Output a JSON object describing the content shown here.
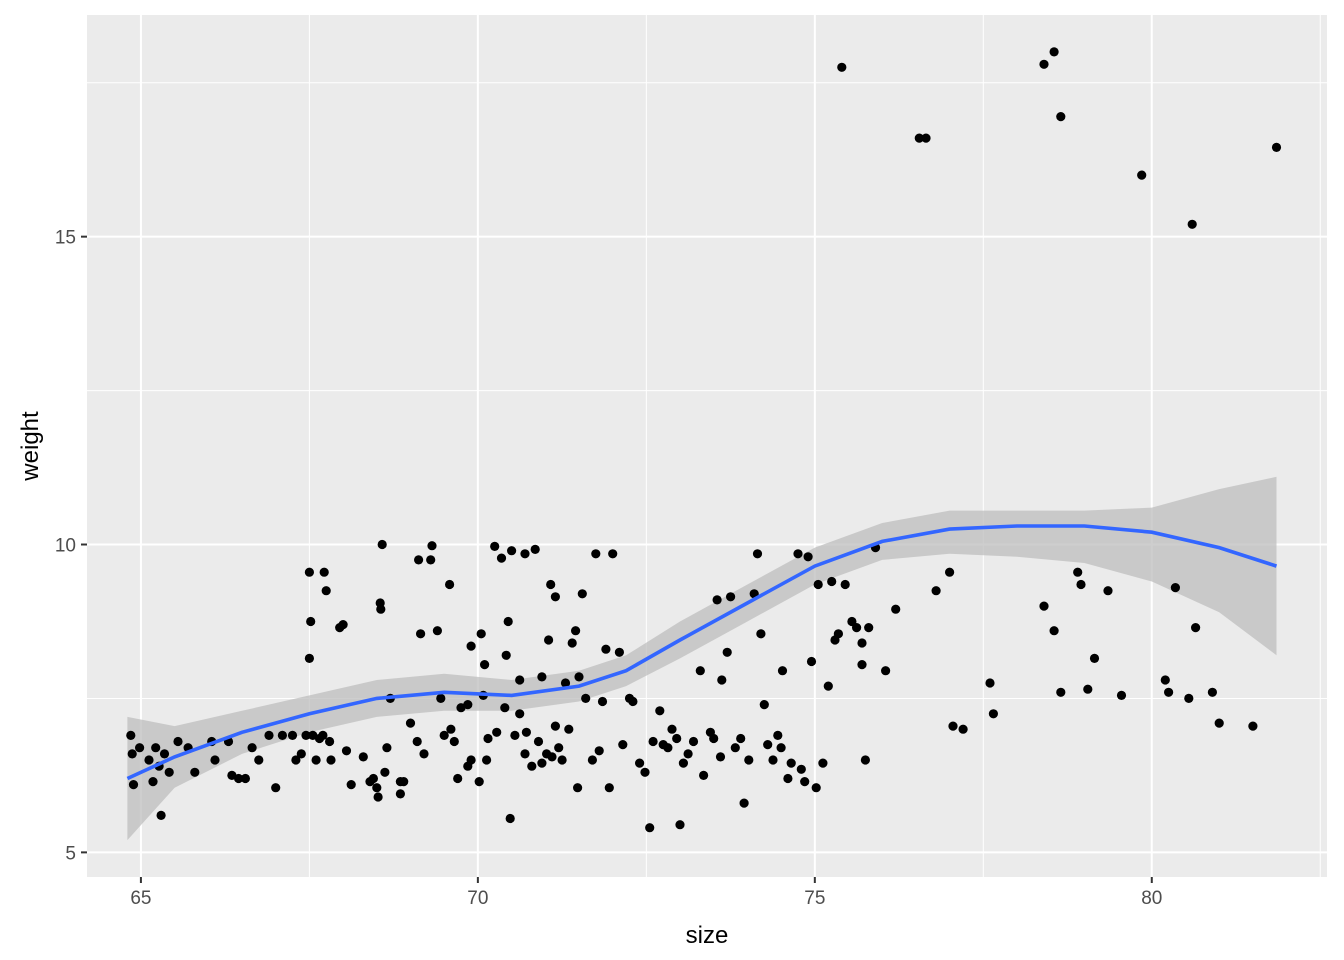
{
  "chart_data": {
    "type": "scatter",
    "title": "",
    "xlabel": "size",
    "ylabel": "weight",
    "xlim": [
      64.2,
      82.6
    ],
    "ylim": [
      4.6,
      18.6
    ],
    "x_major_ticks": [
      65,
      70,
      75,
      80
    ],
    "x_tick_labels": [
      "65",
      "70",
      "75",
      "80"
    ],
    "y_major_ticks": [
      5,
      10,
      15
    ],
    "y_tick_labels": [
      "5",
      "10",
      "15"
    ],
    "grid": true,
    "legend": "none",
    "colors": {
      "panel_background": "#ebebeb",
      "grid": "#ffffff",
      "points": "#000000",
      "smooth_line": "#3366ff",
      "confidence_band": "#bdbdbd"
    },
    "points": [
      [
        64.85,
        6.9
      ],
      [
        64.87,
        6.6
      ],
      [
        64.89,
        6.1
      ],
      [
        64.98,
        6.7
      ],
      [
        65.12,
        6.5
      ],
      [
        65.18,
        6.15
      ],
      [
        65.22,
        6.7
      ],
      [
        65.27,
        6.4
      ],
      [
        65.3,
        5.6
      ],
      [
        65.35,
        6.6
      ],
      [
        65.42,
        6.3
      ],
      [
        65.55,
        6.8
      ],
      [
        65.7,
        6.7
      ],
      [
        65.8,
        6.3
      ],
      [
        66.05,
        6.8
      ],
      [
        66.1,
        6.5
      ],
      [
        66.3,
        6.8
      ],
      [
        66.35,
        6.25
      ],
      [
        66.45,
        6.2
      ],
      [
        66.55,
        6.2
      ],
      [
        66.65,
        6.7
      ],
      [
        66.75,
        6.5
      ],
      [
        66.9,
        6.9
      ],
      [
        67.0,
        6.05
      ],
      [
        67.1,
        6.9
      ],
      [
        67.25,
        6.9
      ],
      [
        67.3,
        6.5
      ],
      [
        67.38,
        6.6
      ],
      [
        67.45,
        6.9
      ],
      [
        67.5,
        9.55
      ],
      [
        67.5,
        8.15
      ],
      [
        67.52,
        8.75
      ],
      [
        67.55,
        6.9
      ],
      [
        67.6,
        6.5
      ],
      [
        67.65,
        6.85
      ],
      [
        67.72,
        9.55
      ],
      [
        67.7,
        6.9
      ],
      [
        67.75,
        9.25
      ],
      [
        67.8,
        6.8
      ],
      [
        67.82,
        6.5
      ],
      [
        67.95,
        8.65
      ],
      [
        68.0,
        8.7
      ],
      [
        68.05,
        6.65
      ],
      [
        68.12,
        6.1
      ],
      [
        68.3,
        6.55
      ],
      [
        68.4,
        6.15
      ],
      [
        68.45,
        6.2
      ],
      [
        68.5,
        6.05
      ],
      [
        68.52,
        5.9
      ],
      [
        68.55,
        9.05
      ],
      [
        68.56,
        8.95
      ],
      [
        68.58,
        10.0
      ],
      [
        68.62,
        6.3
      ],
      [
        68.65,
        6.7
      ],
      [
        68.7,
        7.5
      ],
      [
        68.85,
        6.15
      ],
      [
        68.85,
        5.95
      ],
      [
        68.9,
        6.15
      ],
      [
        69.0,
        7.1
      ],
      [
        69.1,
        6.8
      ],
      [
        69.12,
        9.75
      ],
      [
        69.15,
        8.55
      ],
      [
        69.2,
        6.6
      ],
      [
        69.3,
        9.75
      ],
      [
        69.32,
        9.98
      ],
      [
        69.4,
        8.6
      ],
      [
        69.45,
        7.5
      ],
      [
        69.5,
        6.9
      ],
      [
        69.58,
        9.35
      ],
      [
        69.6,
        7.0
      ],
      [
        69.65,
        6.8
      ],
      [
        69.7,
        6.2
      ],
      [
        69.75,
        7.35
      ],
      [
        69.85,
        7.4
      ],
      [
        69.85,
        6.4
      ],
      [
        69.9,
        6.5
      ],
      [
        70.02,
        6.15
      ],
      [
        70.08,
        7.55
      ],
      [
        70.1,
        8.05
      ],
      [
        70.13,
        6.5
      ],
      [
        70.15,
        6.85
      ],
      [
        70.25,
        9.97
      ],
      [
        70.28,
        6.95
      ],
      [
        70.35,
        9.78
      ],
      [
        70.4,
        7.35
      ],
      [
        70.45,
        8.75
      ],
      [
        70.48,
        5.55
      ],
      [
        70.5,
        9.9
      ],
      [
        70.55,
        6.9
      ],
      [
        70.62,
        7.8
      ],
      [
        70.7,
        6.6
      ],
      [
        70.72,
        6.95
      ],
      [
        70.8,
        6.4
      ],
      [
        70.85,
        9.92
      ],
      [
        70.9,
        6.8
      ],
      [
        70.95,
        7.85
      ],
      [
        70.95,
        6.45
      ],
      [
        71.02,
        6.6
      ],
      [
        71.08,
        9.35
      ],
      [
        71.05,
        8.45
      ],
      [
        71.1,
        6.55
      ],
      [
        71.15,
        7.05
      ],
      [
        71.2,
        6.7
      ],
      [
        71.25,
        6.5
      ],
      [
        71.3,
        7.75
      ],
      [
        71.35,
        7.0
      ],
      [
        71.4,
        8.4
      ],
      [
        71.45,
        8.6
      ],
      [
        71.48,
        6.05
      ],
      [
        71.5,
        7.85
      ],
      [
        71.55,
        9.2
      ],
      [
        71.6,
        7.5
      ],
      [
        71.7,
        6.5
      ],
      [
        71.75,
        9.85
      ],
      [
        71.8,
        6.65
      ],
      [
        71.85,
        7.45
      ],
      [
        71.9,
        8.3
      ],
      [
        71.95,
        6.05
      ],
      [
        72.0,
        9.85
      ],
      [
        72.1,
        8.25
      ],
      [
        72.15,
        6.75
      ],
      [
        72.25,
        7.5
      ],
      [
        72.3,
        7.45
      ],
      [
        72.4,
        6.45
      ],
      [
        72.48,
        6.3
      ],
      [
        72.55,
        5.4
      ],
      [
        72.6,
        6.8
      ],
      [
        72.7,
        7.3
      ],
      [
        72.75,
        6.75
      ],
      [
        72.82,
        6.7
      ],
      [
        72.88,
        7.0
      ],
      [
        72.95,
        6.85
      ],
      [
        73.0,
        5.45
      ],
      [
        73.05,
        6.45
      ],
      [
        73.12,
        6.6
      ],
      [
        73.2,
        6.8
      ],
      [
        73.3,
        7.95
      ],
      [
        73.35,
        6.25
      ],
      [
        73.45,
        6.95
      ],
      [
        73.5,
        6.85
      ],
      [
        73.55,
        9.1
      ],
      [
        73.6,
        6.55
      ],
      [
        73.62,
        7.8
      ],
      [
        73.7,
        8.25
      ],
      [
        73.75,
        9.15
      ],
      [
        73.82,
        6.7
      ],
      [
        73.9,
        6.85
      ],
      [
        73.95,
        5.8
      ],
      [
        74.02,
        6.5
      ],
      [
        74.1,
        9.2
      ],
      [
        74.15,
        9.85
      ],
      [
        74.2,
        8.55
      ],
      [
        74.25,
        7.4
      ],
      [
        74.3,
        6.75
      ],
      [
        74.38,
        6.5
      ],
      [
        74.45,
        6.9
      ],
      [
        74.5,
        6.7
      ],
      [
        74.52,
        7.95
      ],
      [
        74.6,
        6.2
      ],
      [
        74.65,
        6.45
      ],
      [
        74.75,
        9.85
      ],
      [
        74.8,
        6.35
      ],
      [
        74.85,
        6.15
      ],
      [
        74.9,
        9.8
      ],
      [
        74.95,
        8.1
      ],
      [
        75.02,
        6.05
      ],
      [
        75.05,
        9.35
      ],
      [
        75.12,
        6.45
      ],
      [
        75.2,
        7.7
      ],
      [
        75.25,
        9.4
      ],
      [
        75.3,
        8.45
      ],
      [
        75.35,
        8.55
      ],
      [
        75.45,
        9.35
      ],
      [
        75.55,
        8.75
      ],
      [
        75.62,
        8.65
      ],
      [
        75.7,
        8.05
      ],
      [
        75.75,
        6.5
      ],
      [
        75.9,
        9.95
      ],
      [
        75.4,
        17.75
      ],
      [
        75.7,
        8.4
      ],
      [
        75.8,
        8.65
      ],
      [
        76.05,
        7.95
      ],
      [
        76.2,
        8.95
      ],
      [
        76.55,
        16.6
      ],
      [
        76.65,
        16.6
      ],
      [
        76.8,
        9.25
      ],
      [
        77.0,
        9.55
      ],
      [
        77.05,
        7.05
      ],
      [
        77.2,
        7.0
      ],
      [
        77.6,
        7.75
      ],
      [
        77.65,
        7.25
      ],
      [
        78.4,
        9.0
      ],
      [
        78.4,
        17.8
      ],
      [
        78.55,
        18.0
      ],
      [
        78.55,
        8.6
      ],
      [
        78.65,
        7.6
      ],
      [
        78.65,
        16.95
      ],
      [
        78.9,
        9.55
      ],
      [
        78.95,
        9.35
      ],
      [
        79.05,
        7.65
      ],
      [
        79.15,
        8.15
      ],
      [
        79.35,
        9.25
      ],
      [
        79.55,
        7.55
      ],
      [
        79.85,
        16.0
      ],
      [
        80.2,
        7.8
      ],
      [
        80.25,
        7.6
      ],
      [
        80.35,
        9.3
      ],
      [
        80.55,
        7.5
      ],
      [
        80.6,
        15.2
      ],
      [
        80.65,
        8.65
      ],
      [
        80.9,
        7.6
      ],
      [
        81.0,
        7.1
      ],
      [
        81.5,
        7.05
      ],
      [
        81.85,
        16.45
      ],
      [
        70.7,
        9.85
      ],
      [
        70.05,
        8.55
      ],
      [
        69.9,
        8.35
      ],
      [
        70.42,
        8.2
      ],
      [
        70.62,
        7.25
      ],
      [
        71.15,
        9.15
      ]
    ],
    "smooth_line": {
      "x": [
        64.8,
        65.5,
        66.5,
        67.5,
        68.5,
        69.5,
        70.5,
        71.5,
        72.2,
        73.0,
        74.0,
        75.0,
        76.0,
        77.0,
        78.0,
        79.0,
        80.0,
        81.0,
        81.85
      ],
      "y": [
        6.2,
        6.55,
        6.95,
        7.25,
        7.5,
        7.6,
        7.55,
        7.7,
        7.95,
        8.45,
        9.05,
        9.65,
        10.05,
        10.25,
        10.3,
        10.3,
        10.2,
        9.95,
        9.65
      ]
    },
    "confidence_band": {
      "x": [
        64.8,
        65.5,
        66.5,
        67.5,
        68.5,
        69.5,
        70.5,
        71.5,
        72.2,
        73.0,
        74.0,
        75.0,
        76.0,
        77.0,
        78.0,
        79.0,
        80.0,
        81.0,
        81.85
      ],
      "lower": [
        5.2,
        6.05,
        6.6,
        6.95,
        7.2,
        7.3,
        7.3,
        7.45,
        7.7,
        8.15,
        8.75,
        9.35,
        9.75,
        9.85,
        9.8,
        9.7,
        9.4,
        8.9,
        8.2
      ],
      "upper": [
        7.2,
        7.05,
        7.3,
        7.55,
        7.8,
        7.9,
        7.8,
        7.95,
        8.2,
        8.75,
        9.35,
        9.95,
        10.35,
        10.55,
        10.55,
        10.55,
        10.6,
        10.9,
        11.1
      ]
    }
  }
}
